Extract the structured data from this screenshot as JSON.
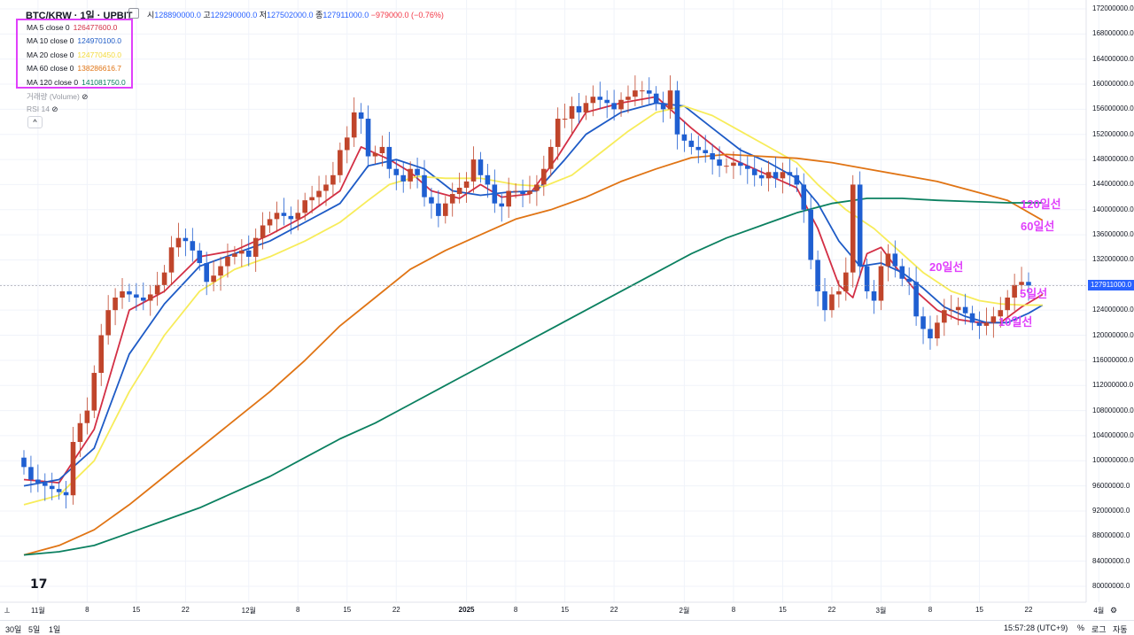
{
  "header": {
    "symbol": "BTC/KRW · 1일 · UPBIT",
    "open_label": "시",
    "open": "128890000.0",
    "high_label": "고",
    "high": "129290000.0",
    "low_label": "저",
    "low": "127502000.0",
    "close_label": "종",
    "close": "127911000.0",
    "change": "−979000.0 (−0.76%)"
  },
  "legend": [
    {
      "label": "MA 5 close 0",
      "value": "126477600.0",
      "color": "#d32f45"
    },
    {
      "label": "MA 10 close 0",
      "value": "124970100.0",
      "color": "#1e5bc6"
    },
    {
      "label": "MA 20 close 0",
      "value": "124770450.0",
      "color": "#f7ec5a"
    },
    {
      "label": "MA 60 close 0",
      "value": "138286616.7",
      "color": "#e07414"
    },
    {
      "label": "MA 120 close 0",
      "value": "141081750.0",
      "color": "#0b8060"
    }
  ],
  "indicators": {
    "volume": "거래량 (Volume)",
    "rsi": "RSI 14",
    "collapse": "^"
  },
  "annotations": {
    "ma120": "120일선",
    "ma60": "60일선",
    "ma20": "20일선",
    "ma5": "5일선",
    "ma10": "10일선"
  },
  "price_tag": "127911000.0",
  "bottom": {
    "r30d": "30일",
    "r5d": "5일",
    "r1d": "1일",
    "time": "15:57:28 (UTC+9)",
    "pct": "%",
    "log": "로그",
    "auto": "자동"
  },
  "chart_data": {
    "type": "candlestick",
    "title": "",
    "xlabel": "",
    "ylabel": "",
    "ylim": [
      80000000,
      172000000
    ],
    "y_ticks": [
      "172000000.0",
      "168000000.0",
      "164000000.0",
      "160000000.0",
      "156000000.0",
      "152000000.0",
      "148000000.0",
      "144000000.0",
      "140000000.0",
      "136000000.0",
      "132000000.0",
      "128000000.0",
      "124000000.0",
      "120000000.0",
      "116000000.0",
      "112000000.0",
      "108000000.0",
      "104000000.0",
      "100000000.0",
      "96000000.0",
      "92000000.0",
      "88000000.0",
      "84000000.0",
      "80000000.0"
    ],
    "x_ticks": [
      {
        "label": "11월",
        "idx": 2
      },
      {
        "label": "8",
        "idx": 9
      },
      {
        "label": "15",
        "idx": 16
      },
      {
        "label": "22",
        "idx": 23
      },
      {
        "label": "12월",
        "idx": 32
      },
      {
        "label": "8",
        "idx": 39
      },
      {
        "label": "15",
        "idx": 46
      },
      {
        "label": "22",
        "idx": 53
      },
      {
        "label": "2025",
        "idx": 63,
        "bold": true
      },
      {
        "label": "8",
        "idx": 70
      },
      {
        "label": "15",
        "idx": 77
      },
      {
        "label": "22",
        "idx": 84
      },
      {
        "label": "2월",
        "idx": 94
      },
      {
        "label": "8",
        "idx": 101
      },
      {
        "label": "15",
        "idx": 108
      },
      {
        "label": "22",
        "idx": 115
      },
      {
        "label": "3월",
        "idx": 122
      },
      {
        "label": "8",
        "idx": 129
      },
      {
        "label": "15",
        "idx": 136
      },
      {
        "label": "22",
        "idx": 143
      },
      {
        "label": "4월",
        "idx": 153
      }
    ],
    "candles_close": [
      99000000,
      97000000,
      96500000,
      96000000,
      95500000,
      95000000,
      94500000,
      103000000,
      106000000,
      108000000,
      114000000,
      120000000,
      124000000,
      126000000,
      127000000,
      126500000,
      126000000,
      125500000,
      126500000,
      128000000,
      130000000,
      134000000,
      135500000,
      135000000,
      133500000,
      131500000,
      128500000,
      129500000,
      131000000,
      132500000,
      133000000,
      133500000,
      132500000,
      135500000,
      137500000,
      138500000,
      139500000,
      139000000,
      138500000,
      139500000,
      141500000,
      142000000,
      143000000,
      144000000,
      145500000,
      149500000,
      151500000,
      155500000,
      154500000,
      148500000,
      149000000,
      150000000,
      146500000,
      145500000,
      144500000,
      146500000,
      145500000,
      142000000,
      141000000,
      139000000,
      141000000,
      142500000,
      143500000,
      144500000,
      148000000,
      145500000,
      144000000,
      141000000,
      140500000,
      143000000,
      143000000,
      142500000,
      143000000,
      144000000,
      146500000,
      150000000,
      154500000,
      154500000,
      156500000,
      155500000,
      157000000,
      158000000,
      157500000,
      157000000,
      156000000,
      157500000,
      158000000,
      159000000,
      159000000,
      158500000,
      157000000,
      156000000,
      159000000,
      152000000,
      151000000,
      150000000,
      149500000,
      149000000,
      148000000,
      147000000,
      147000000,
      147500000,
      147000000,
      146500000,
      145500000,
      145000000,
      146000000,
      145000000,
      146000000,
      145500000,
      144000000,
      140000000,
      132000000,
      127000000,
      124000000,
      126500000,
      127000000,
      130000000,
      144000000,
      131000000,
      127000000,
      125500000,
      131000000,
      133000000,
      131000000,
      129000000,
      128500000,
      123000000,
      121000000,
      119500000,
      122000000,
      124000000,
      124000000,
      124500000,
      123500000,
      122000000,
      121500000,
      122000000,
      123000000,
      124000000,
      126000000,
      128000000,
      128500000,
      127911000
    ],
    "series": [
      {
        "name": "MA 5 close 0",
        "color": "#d32f45",
        "points": [
          [
            0,
            97
          ],
          [
            5,
            96.5
          ],
          [
            10,
            105
          ],
          [
            15,
            124
          ],
          [
            20,
            127
          ],
          [
            25,
            132.5
          ],
          [
            30,
            133.5
          ],
          [
            35,
            136
          ],
          [
            40,
            139
          ],
          [
            45,
            143
          ],
          [
            48,
            150
          ],
          [
            52,
            148
          ],
          [
            55,
            146
          ],
          [
            58,
            143
          ],
          [
            62,
            141.8
          ],
          [
            65,
            144
          ],
          [
            68,
            142
          ],
          [
            72,
            142.5
          ],
          [
            76,
            148.5
          ],
          [
            80,
            155.5
          ],
          [
            85,
            157
          ],
          [
            90,
            158
          ],
          [
            95,
            153
          ],
          [
            100,
            148.5
          ],
          [
            105,
            146
          ],
          [
            110,
            143.5
          ],
          [
            113,
            137
          ],
          [
            116,
            128
          ],
          [
            118,
            126
          ],
          [
            120,
            133
          ],
          [
            122,
            134
          ],
          [
            124,
            131
          ],
          [
            127,
            127
          ],
          [
            130,
            124
          ],
          [
            133,
            122.5
          ],
          [
            136,
            122
          ],
          [
            139,
            122
          ],
          [
            142,
            124.5
          ],
          [
            145,
            126.5
          ]
        ]
      },
      {
        "name": "MA 10 close 0",
        "color": "#1e5bc6",
        "points": [
          [
            0,
            96
          ],
          [
            5,
            97
          ],
          [
            10,
            102
          ],
          [
            15,
            117
          ],
          [
            20,
            125
          ],
          [
            25,
            131
          ],
          [
            30,
            133
          ],
          [
            35,
            135
          ],
          [
            40,
            138
          ],
          [
            45,
            141
          ],
          [
            49,
            147
          ],
          [
            53,
            148
          ],
          [
            57,
            146.5
          ],
          [
            61,
            143
          ],
          [
            65,
            142.3
          ],
          [
            69,
            142.8
          ],
          [
            73,
            143
          ],
          [
            77,
            148
          ],
          [
            80,
            152
          ],
          [
            85,
            155.5
          ],
          [
            90,
            157
          ],
          [
            94,
            156.5
          ],
          [
            98,
            153
          ],
          [
            102,
            149.5
          ],
          [
            106,
            147.5
          ],
          [
            110,
            145
          ],
          [
            113,
            141
          ],
          [
            116,
            135
          ],
          [
            119,
            131
          ],
          [
            122,
            131.5
          ],
          [
            125,
            130
          ],
          [
            128,
            127.5
          ],
          [
            131,
            124.5
          ],
          [
            134,
            123
          ],
          [
            137,
            122
          ],
          [
            140,
            122
          ],
          [
            143,
            123.5
          ],
          [
            145,
            124.8
          ]
        ]
      },
      {
        "name": "MA 20 close 0",
        "color": "#f7ec5a",
        "points": [
          [
            0,
            93
          ],
          [
            5,
            94.5
          ],
          [
            10,
            100
          ],
          [
            15,
            111
          ],
          [
            20,
            120
          ],
          [
            25,
            127
          ],
          [
            30,
            130.5
          ],
          [
            35,
            132.5
          ],
          [
            40,
            135
          ],
          [
            45,
            138
          ],
          [
            49,
            141.5
          ],
          [
            52,
            144
          ],
          [
            56,
            145.3
          ],
          [
            60,
            145
          ],
          [
            65,
            145
          ],
          [
            70,
            144
          ],
          [
            74,
            143.7
          ],
          [
            78,
            145.5
          ],
          [
            82,
            149
          ],
          [
            86,
            152.5
          ],
          [
            90,
            155.5
          ],
          [
            94,
            156.5
          ],
          [
            98,
            155
          ],
          [
            102,
            152.5
          ],
          [
            106,
            150
          ],
          [
            110,
            147.5
          ],
          [
            113,
            144
          ],
          [
            117,
            140
          ],
          [
            121,
            137
          ],
          [
            125,
            133
          ],
          [
            128,
            130
          ],
          [
            132,
            127
          ],
          [
            136,
            125.5
          ],
          [
            139,
            125
          ],
          [
            142,
            124.8
          ],
          [
            145,
            124.8
          ]
        ]
      },
      {
        "name": "MA 60 close 0",
        "color": "#e07414",
        "points": [
          [
            0,
            85
          ],
          [
            5,
            86.5
          ],
          [
            10,
            89
          ],
          [
            15,
            93
          ],
          [
            20,
            97.5
          ],
          [
            25,
            102
          ],
          [
            30,
            106.5
          ],
          [
            35,
            111
          ],
          [
            40,
            116
          ],
          [
            45,
            121.5
          ],
          [
            50,
            126
          ],
          [
            55,
            130.5
          ],
          [
            60,
            133.5
          ],
          [
            65,
            136
          ],
          [
            70,
            138.5
          ],
          [
            75,
            140
          ],
          [
            80,
            142
          ],
          [
            85,
            144.5
          ],
          [
            90,
            146.5
          ],
          [
            95,
            148.3
          ],
          [
            100,
            148.8
          ],
          [
            105,
            148.5
          ],
          [
            110,
            148.2
          ],
          [
            115,
            147.5
          ],
          [
            120,
            146.5
          ],
          [
            125,
            145.5
          ],
          [
            130,
            144.5
          ],
          [
            135,
            143
          ],
          [
            140,
            141.5
          ],
          [
            145,
            138.3
          ]
        ]
      },
      {
        "name": "MA 120 close 0",
        "color": "#0b8060",
        "points": [
          [
            0,
            85
          ],
          [
            5,
            85.5
          ],
          [
            10,
            86.5
          ],
          [
            15,
            88.5
          ],
          [
            20,
            90.5
          ],
          [
            25,
            92.5
          ],
          [
            30,
            95
          ],
          [
            35,
            97.5
          ],
          [
            40,
            100.5
          ],
          [
            45,
            103.5
          ],
          [
            50,
            106
          ],
          [
            55,
            109
          ],
          [
            60,
            112
          ],
          [
            65,
            115
          ],
          [
            70,
            118
          ],
          [
            75,
            121
          ],
          [
            80,
            124
          ],
          [
            85,
            127
          ],
          [
            90,
            130
          ],
          [
            95,
            133
          ],
          [
            100,
            135.5
          ],
          [
            105,
            137.5
          ],
          [
            110,
            139.5
          ],
          [
            115,
            141
          ],
          [
            120,
            141.8
          ],
          [
            125,
            141.8
          ],
          [
            130,
            141.5
          ],
          [
            135,
            141.3
          ],
          [
            140,
            141.1
          ],
          [
            145,
            141.1
          ]
        ]
      }
    ]
  }
}
